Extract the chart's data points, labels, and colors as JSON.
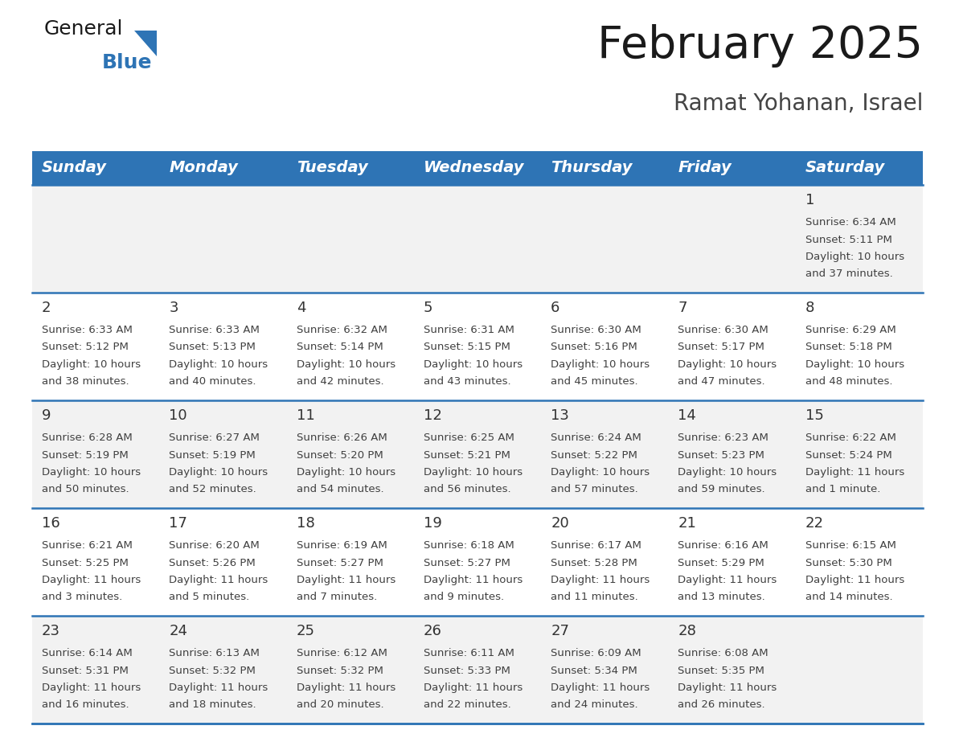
{
  "title": "February 2025",
  "subtitle": "Ramat Yohanan, Israel",
  "days_of_week": [
    "Sunday",
    "Monday",
    "Tuesday",
    "Wednesday",
    "Thursday",
    "Friday",
    "Saturday"
  ],
  "header_bg": "#2E74B5",
  "header_text": "#FFFFFF",
  "row_bg_light": "#F2F2F2",
  "row_bg_white": "#FFFFFF",
  "separator_color": "#2E74B5",
  "text_color": "#404040",
  "day_num_color": "#333333",
  "calendar_data": [
    [
      {
        "day": null,
        "sunrise": null,
        "sunset": null,
        "daylight": null
      },
      {
        "day": null,
        "sunrise": null,
        "sunset": null,
        "daylight": null
      },
      {
        "day": null,
        "sunrise": null,
        "sunset": null,
        "daylight": null
      },
      {
        "day": null,
        "sunrise": null,
        "sunset": null,
        "daylight": null
      },
      {
        "day": null,
        "sunrise": null,
        "sunset": null,
        "daylight": null
      },
      {
        "day": null,
        "sunrise": null,
        "sunset": null,
        "daylight": null
      },
      {
        "day": 1,
        "sunrise": "6:34 AM",
        "sunset": "5:11 PM",
        "daylight": "10 hours and 37 minutes."
      }
    ],
    [
      {
        "day": 2,
        "sunrise": "6:33 AM",
        "sunset": "5:12 PM",
        "daylight": "10 hours and 38 minutes."
      },
      {
        "day": 3,
        "sunrise": "6:33 AM",
        "sunset": "5:13 PM",
        "daylight": "10 hours and 40 minutes."
      },
      {
        "day": 4,
        "sunrise": "6:32 AM",
        "sunset": "5:14 PM",
        "daylight": "10 hours and 42 minutes."
      },
      {
        "day": 5,
        "sunrise": "6:31 AM",
        "sunset": "5:15 PM",
        "daylight": "10 hours and 43 minutes."
      },
      {
        "day": 6,
        "sunrise": "6:30 AM",
        "sunset": "5:16 PM",
        "daylight": "10 hours and 45 minutes."
      },
      {
        "day": 7,
        "sunrise": "6:30 AM",
        "sunset": "5:17 PM",
        "daylight": "10 hours and 47 minutes."
      },
      {
        "day": 8,
        "sunrise": "6:29 AM",
        "sunset": "5:18 PM",
        "daylight": "10 hours and 48 minutes."
      }
    ],
    [
      {
        "day": 9,
        "sunrise": "6:28 AM",
        "sunset": "5:19 PM",
        "daylight": "10 hours and 50 minutes."
      },
      {
        "day": 10,
        "sunrise": "6:27 AM",
        "sunset": "5:19 PM",
        "daylight": "10 hours and 52 minutes."
      },
      {
        "day": 11,
        "sunrise": "6:26 AM",
        "sunset": "5:20 PM",
        "daylight": "10 hours and 54 minutes."
      },
      {
        "day": 12,
        "sunrise": "6:25 AM",
        "sunset": "5:21 PM",
        "daylight": "10 hours and 56 minutes."
      },
      {
        "day": 13,
        "sunrise": "6:24 AM",
        "sunset": "5:22 PM",
        "daylight": "10 hours and 57 minutes."
      },
      {
        "day": 14,
        "sunrise": "6:23 AM",
        "sunset": "5:23 PM",
        "daylight": "10 hours and 59 minutes."
      },
      {
        "day": 15,
        "sunrise": "6:22 AM",
        "sunset": "5:24 PM",
        "daylight": "11 hours and 1 minute."
      }
    ],
    [
      {
        "day": 16,
        "sunrise": "6:21 AM",
        "sunset": "5:25 PM",
        "daylight": "11 hours and 3 minutes."
      },
      {
        "day": 17,
        "sunrise": "6:20 AM",
        "sunset": "5:26 PM",
        "daylight": "11 hours and 5 minutes."
      },
      {
        "day": 18,
        "sunrise": "6:19 AM",
        "sunset": "5:27 PM",
        "daylight": "11 hours and 7 minutes."
      },
      {
        "day": 19,
        "sunrise": "6:18 AM",
        "sunset": "5:27 PM",
        "daylight": "11 hours and 9 minutes."
      },
      {
        "day": 20,
        "sunrise": "6:17 AM",
        "sunset": "5:28 PM",
        "daylight": "11 hours and 11 minutes."
      },
      {
        "day": 21,
        "sunrise": "6:16 AM",
        "sunset": "5:29 PM",
        "daylight": "11 hours and 13 minutes."
      },
      {
        "day": 22,
        "sunrise": "6:15 AM",
        "sunset": "5:30 PM",
        "daylight": "11 hours and 14 minutes."
      }
    ],
    [
      {
        "day": 23,
        "sunrise": "6:14 AM",
        "sunset": "5:31 PM",
        "daylight": "11 hours and 16 minutes."
      },
      {
        "day": 24,
        "sunrise": "6:13 AM",
        "sunset": "5:32 PM",
        "daylight": "11 hours and 18 minutes."
      },
      {
        "day": 25,
        "sunrise": "6:12 AM",
        "sunset": "5:32 PM",
        "daylight": "11 hours and 20 minutes."
      },
      {
        "day": 26,
        "sunrise": "6:11 AM",
        "sunset": "5:33 PM",
        "daylight": "11 hours and 22 minutes."
      },
      {
        "day": 27,
        "sunrise": "6:09 AM",
        "sunset": "5:34 PM",
        "daylight": "11 hours and 24 minutes."
      },
      {
        "day": 28,
        "sunrise": "6:08 AM",
        "sunset": "5:35 PM",
        "daylight": "11 hours and 26 minutes."
      },
      {
        "day": null,
        "sunrise": null,
        "sunset": null,
        "daylight": null
      }
    ]
  ],
  "title_fontsize": 40,
  "subtitle_fontsize": 20,
  "header_fontsize": 14,
  "day_num_fontsize": 13,
  "cell_text_fontsize": 9.5,
  "logo_general_fontsize": 18,
  "logo_blue_fontsize": 18
}
